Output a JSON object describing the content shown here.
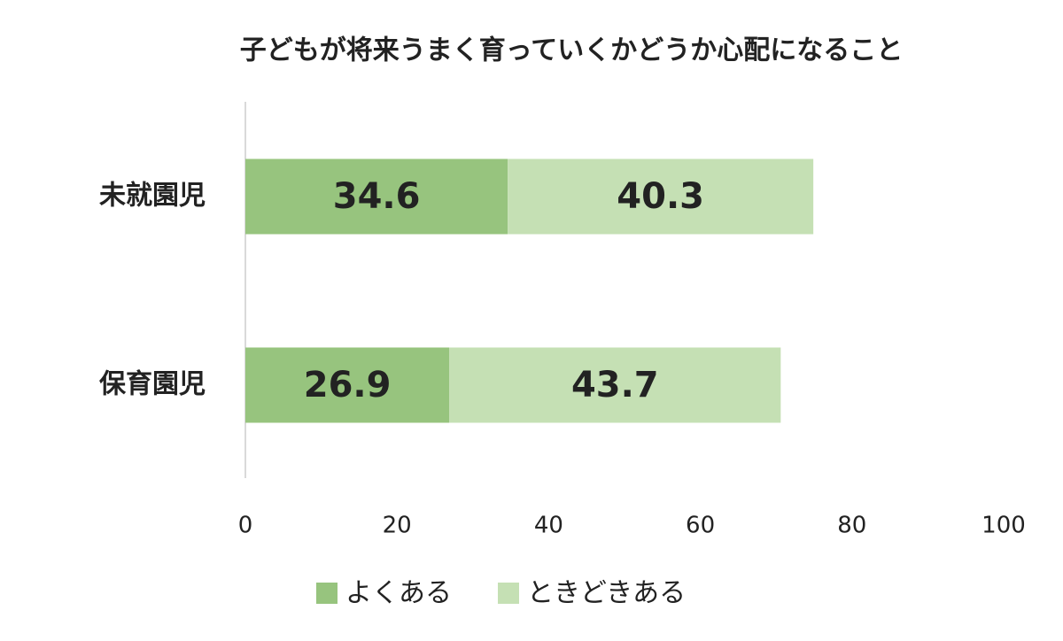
{
  "chart_data": {
    "type": "stacked-bar-horizontal",
    "title": "子どもが将来うまく育っていくかどうか心配になること",
    "categories": [
      "未就園児",
      "保育園児"
    ],
    "series": [
      {
        "name": "よくある",
        "color": "#97c47e",
        "values": [
          34.6,
          26.9
        ]
      },
      {
        "name": "ときどきある",
        "color": "#c5e0b4",
        "values": [
          40.3,
          43.7
        ]
      }
    ],
    "xlim": [
      0,
      100
    ],
    "xticks": [
      0,
      20,
      40,
      60,
      80,
      100
    ],
    "grid": false,
    "legend": "bottom"
  }
}
